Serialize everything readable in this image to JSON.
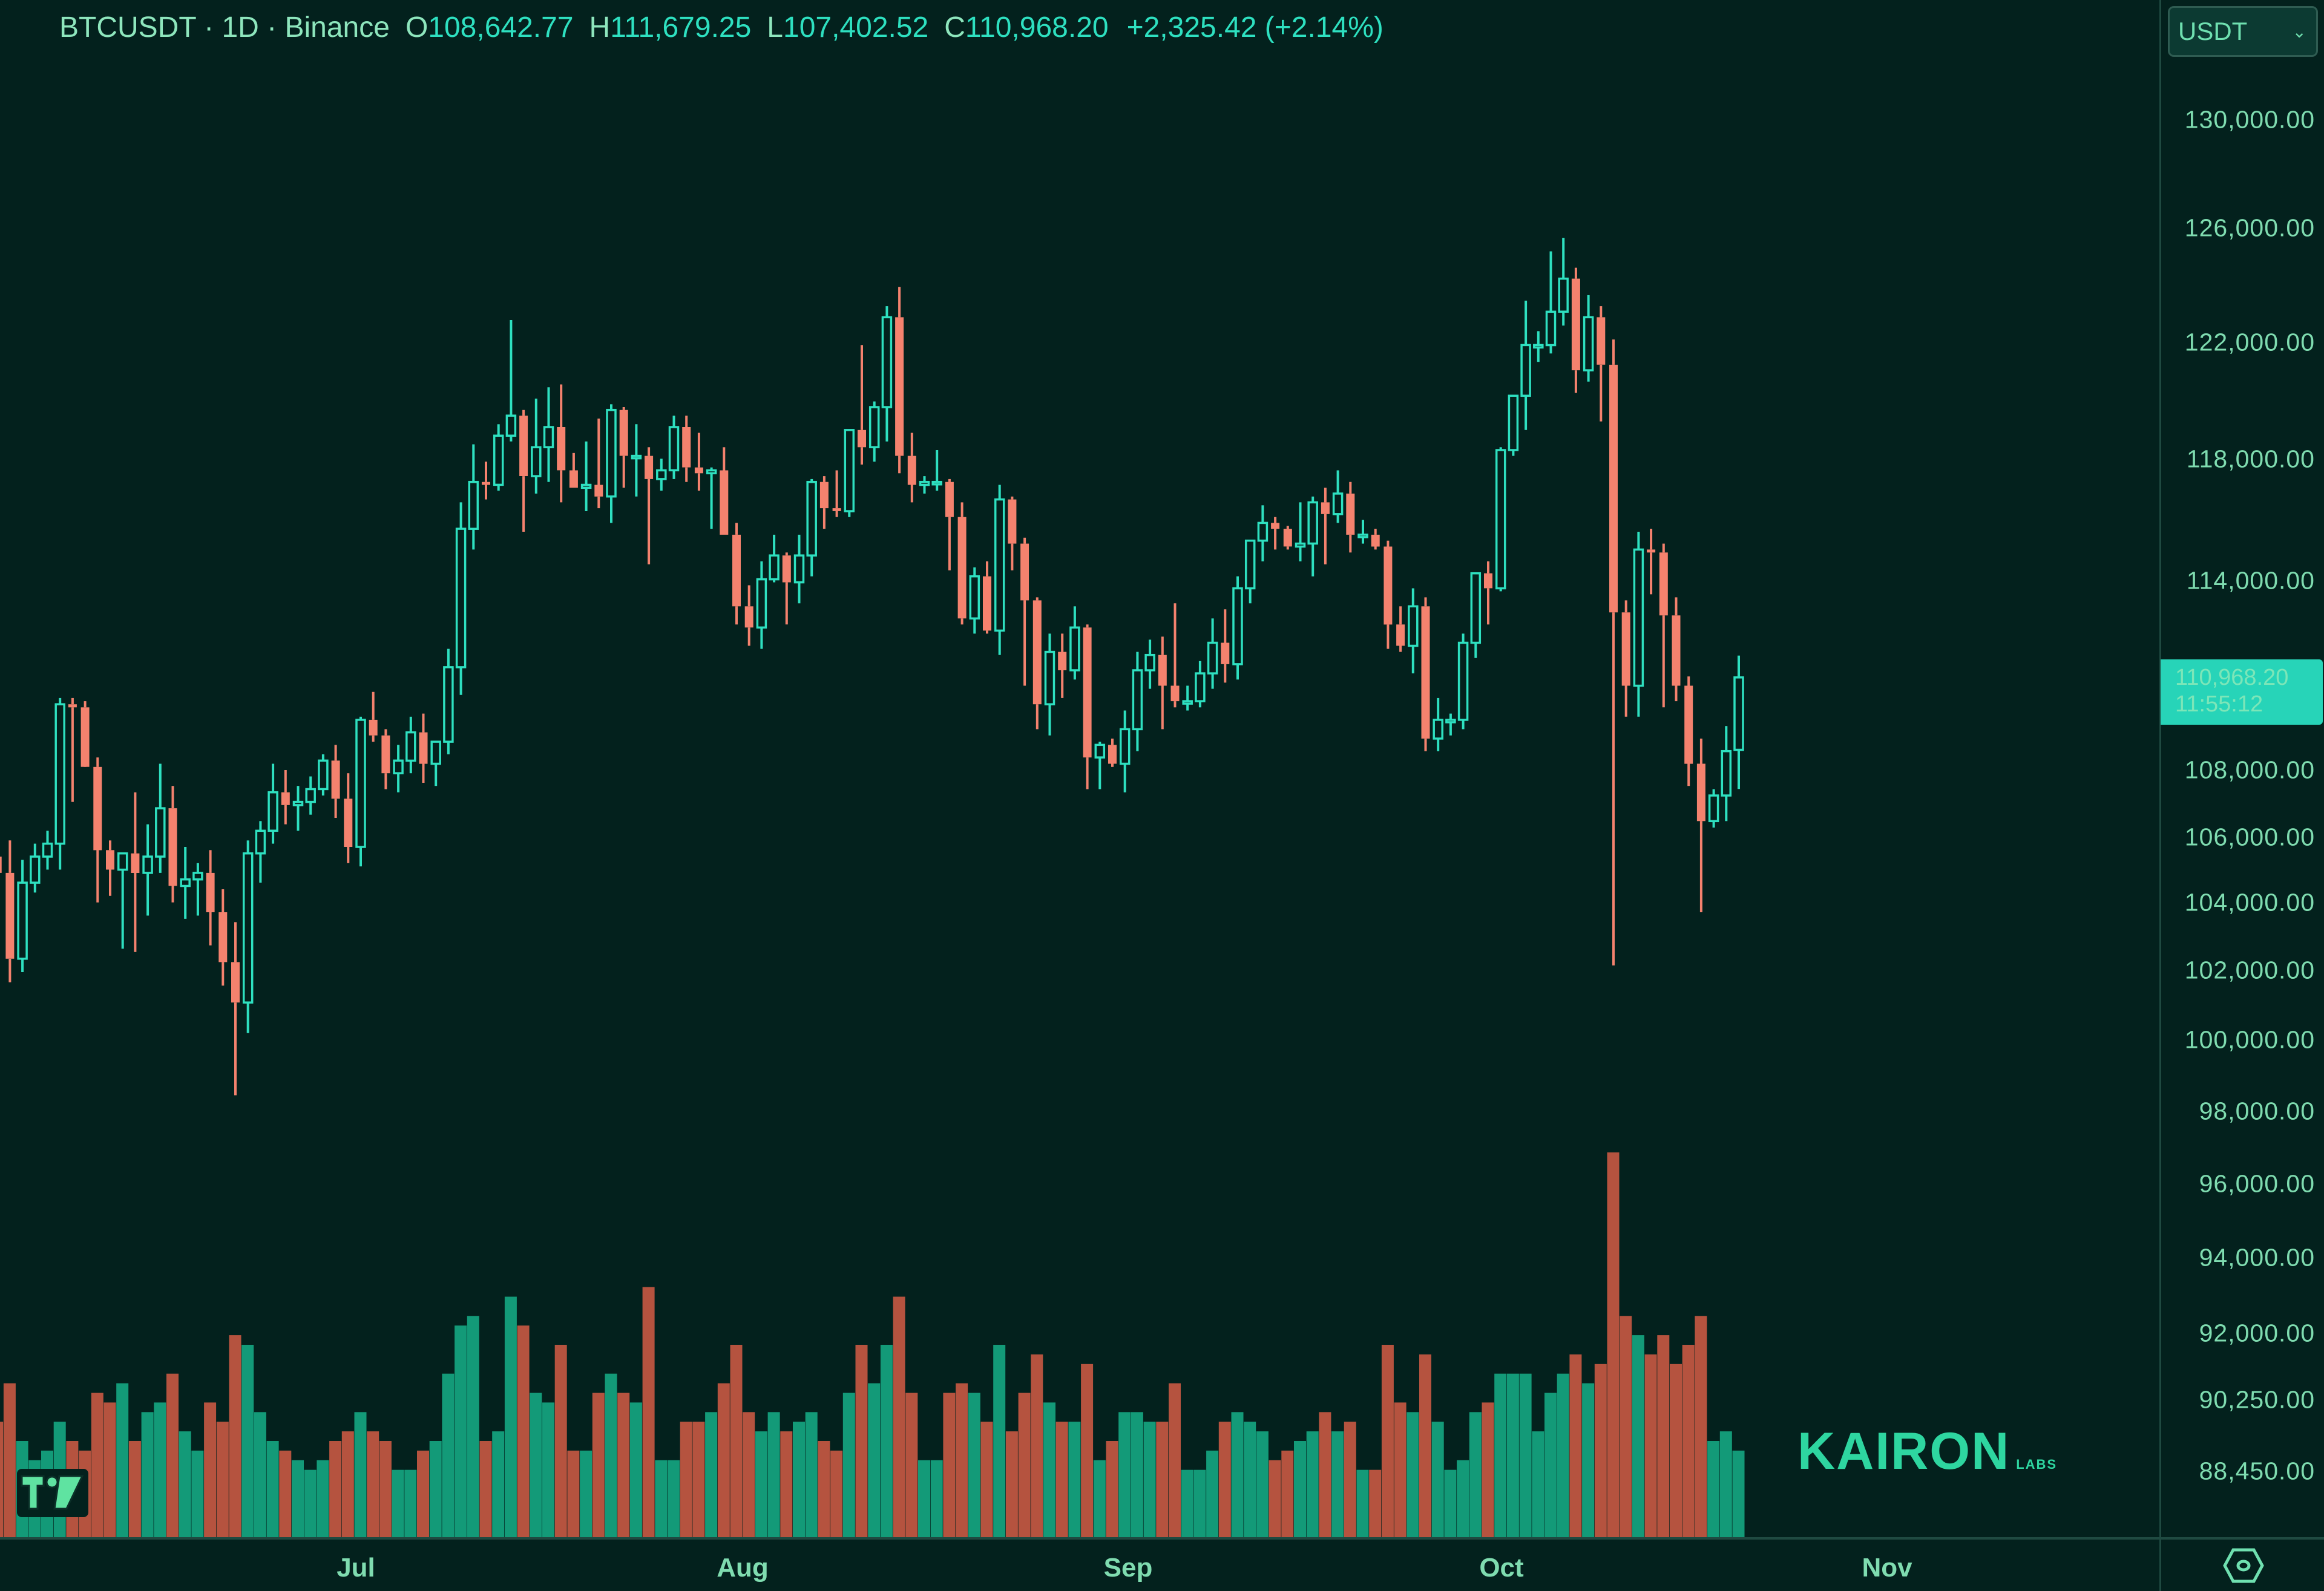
{
  "legend": {
    "symbol": "BTCUSDT · 1D · Binance",
    "open_key": "O",
    "open": "108,642.77",
    "high_key": "H",
    "high": "111,679.25",
    "low_key": "L",
    "low": "107,402.52",
    "close_key": "C",
    "close": "110,968.20",
    "change": "+2,325.42 (+2.14%)"
  },
  "currency_select": {
    "value": "USDT",
    "chevron": "⌄"
  },
  "price_tag": {
    "price": "110,968.20",
    "countdown": "11:55:12"
  },
  "price_axis": {
    "ticks": [
      {
        "label": "130,000.00",
        "y": 198
      },
      {
        "label": "126,000.00",
        "y": 377
      },
      {
        "label": "122,000.00",
        "y": 566
      },
      {
        "label": "118,000.00",
        "y": 759
      },
      {
        "label": "114,000.00",
        "y": 960
      },
      {
        "label": "108,000.00",
        "y": 1273
      },
      {
        "label": "106,000.00",
        "y": 1384
      },
      {
        "label": "104,000.00",
        "y": 1492
      },
      {
        "label": "102,000.00",
        "y": 1604
      },
      {
        "label": "100,000.00",
        "y": 1719
      },
      {
        "label": "98,000.00",
        "y": 1837
      },
      {
        "label": "96,000.00",
        "y": 1957
      },
      {
        "label": "94,000.00",
        "y": 2079
      },
      {
        "label": "92,000.00",
        "y": 2204
      },
      {
        "label": "90,250.00",
        "y": 2314
      },
      {
        "label": "88,450.00",
        "y": 2432
      }
    ]
  },
  "time_axis": {
    "labels": [
      {
        "label": "Jul",
        "x": 588
      },
      {
        "label": "Aug",
        "x": 1227
      },
      {
        "label": "Sep",
        "x": 1864
      },
      {
        "label": "Oct",
        "x": 2481
      },
      {
        "label": "Nov",
        "x": 3118
      }
    ]
  },
  "branding": {
    "watermark": "KAIRON",
    "watermark_sub": "LABS",
    "platform_logo": "tradingview-logo"
  },
  "colors": {
    "background": "#03211d",
    "up": "#2ee0c0",
    "down": "#f4826e",
    "volume_up": "#139a78",
    "volume_down": "#b5533f",
    "text": "#7fdcb0",
    "accent": "#27d4b8"
  },
  "chart_data": {
    "type": "candlestick",
    "title": "BTCUSDT · 1D · Binance",
    "xlabel": "",
    "ylabel": "USDT",
    "y_scale": "log",
    "ylim": [
      88450,
      130000
    ],
    "x_ticks": [
      "Jul",
      "Aug",
      "Sep",
      "Oct",
      "Nov"
    ],
    "fields": [
      "date",
      "open",
      "high",
      "low",
      "close",
      "volume"
    ],
    "last": {
      "open": 108642.77,
      "high": 111679.25,
      "low": 107402.52,
      "close": 110968.2,
      "change": 2325.42,
      "change_pct": 2.14
    },
    "candles": [
      [
        "06-02",
        105900,
        106400,
        104800,
        105300,
        11
      ],
      [
        "06-03",
        105300,
        105900,
        104100,
        104800,
        12
      ],
      [
        "06-04",
        104800,
        105800,
        101500,
        102200,
        16
      ],
      [
        "06-05",
        102200,
        105200,
        101800,
        104500,
        10
      ],
      [
        "06-06",
        104500,
        105700,
        104200,
        105300,
        8
      ],
      [
        "06-07",
        105300,
        106100,
        104900,
        105700,
        9
      ],
      [
        "06-08",
        105700,
        110300,
        104900,
        110100,
        12
      ],
      [
        "06-09",
        110100,
        110300,
        107000,
        110000,
        10
      ],
      [
        "06-10",
        110000,
        110200,
        108500,
        108100,
        9
      ],
      [
        "06-11",
        108100,
        108400,
        103900,
        105500,
        15
      ],
      [
        "06-12",
        105500,
        105800,
        104100,
        104900,
        14
      ],
      [
        "06-13",
        104900,
        105000,
        102500,
        105400,
        16
      ],
      [
        "06-14",
        105400,
        107300,
        102400,
        104800,
        10
      ],
      [
        "06-15",
        104800,
        106300,
        103500,
        105300,
        13
      ],
      [
        "06-16",
        105300,
        108200,
        104800,
        106800,
        14
      ],
      [
        "06-17",
        106800,
        107500,
        103900,
        104400,
        17
      ],
      [
        "06-18",
        104400,
        105600,
        103400,
        104600,
        11
      ],
      [
        "06-19",
        104600,
        105100,
        103500,
        104800,
        9
      ],
      [
        "06-20",
        104800,
        105500,
        102600,
        103600,
        14
      ],
      [
        "06-21",
        103600,
        104300,
        101400,
        102100,
        12
      ],
      [
        "06-22",
        102100,
        103300,
        98200,
        100900,
        21
      ],
      [
        "06-23",
        100900,
        105800,
        100000,
        105400,
        20
      ],
      [
        "06-24",
        105400,
        106400,
        104500,
        106100,
        13
      ],
      [
        "06-25",
        106100,
        108200,
        105700,
        107300,
        10
      ],
      [
        "06-26",
        107300,
        108000,
        106300,
        106900,
        9
      ],
      [
        "06-27",
        106900,
        107500,
        106100,
        107000,
        8
      ],
      [
        "06-28",
        107000,
        107800,
        106600,
        107400,
        7
      ],
      [
        "06-29",
        107400,
        108500,
        107200,
        108300,
        8
      ],
      [
        "06-30",
        108300,
        108800,
        106500,
        107100,
        10
      ],
      [
        "07-01",
        107100,
        107900,
        105100,
        105600,
        11
      ],
      [
        "07-02",
        105600,
        109700,
        105000,
        109600,
        13
      ],
      [
        "07-03",
        109600,
        110500,
        108900,
        109100,
        11
      ],
      [
        "07-04",
        109100,
        109300,
        107400,
        107900,
        10
      ],
      [
        "07-05",
        107900,
        108800,
        107300,
        108300,
        7
      ],
      [
        "07-06",
        108300,
        109700,
        107900,
        109200,
        7
      ],
      [
        "07-07",
        109200,
        109800,
        107600,
        108200,
        9
      ],
      [
        "07-08",
        108200,
        108900,
        107500,
        108900,
        10
      ],
      [
        "07-09",
        108900,
        111900,
        108500,
        111300,
        17
      ],
      [
        "07-10",
        111300,
        116800,
        110400,
        115900,
        22
      ],
      [
        "07-11",
        115900,
        118800,
        115200,
        117500,
        23
      ],
      [
        "07-12",
        117500,
        118200,
        116900,
        117400,
        10
      ],
      [
        "07-13",
        117400,
        119500,
        117200,
        119100,
        11
      ],
      [
        "07-14",
        119100,
        123200,
        118900,
        119800,
        25
      ],
      [
        "07-15",
        119800,
        120000,
        115800,
        117700,
        22
      ],
      [
        "07-16",
        117700,
        120400,
        117100,
        118700,
        15
      ],
      [
        "07-17",
        118700,
        120800,
        117500,
        119400,
        14
      ],
      [
        "07-18",
        119400,
        120900,
        116800,
        117900,
        20
      ],
      [
        "07-19",
        117900,
        118500,
        117300,
        117300,
        9
      ],
      [
        "07-20",
        117300,
        118900,
        116500,
        117400,
        9
      ],
      [
        "07-21",
        117400,
        119700,
        116600,
        117000,
        15
      ],
      [
        "07-22",
        117000,
        120200,
        116100,
        120000,
        17
      ],
      [
        "07-23",
        120000,
        120100,
        117300,
        118400,
        15
      ],
      [
        "07-24",
        118400,
        119500,
        117000,
        118400,
        14
      ],
      [
        "07-25",
        118400,
        118700,
        114700,
        117600,
        26
      ],
      [
        "07-26",
        117600,
        118300,
        117200,
        117900,
        8
      ],
      [
        "07-27",
        117900,
        119800,
        117600,
        119400,
        8
      ],
      [
        "07-28",
        119400,
        119800,
        117500,
        118000,
        12
      ],
      [
        "07-29",
        118000,
        119200,
        117200,
        117800,
        12
      ],
      [
        "07-30",
        117800,
        118000,
        115900,
        117900,
        13
      ],
      [
        "07-31",
        117900,
        118700,
        115700,
        115700,
        16
      ],
      [
        "08-01",
        115700,
        116100,
        112700,
        113300,
        20
      ],
      [
        "08-02",
        113300,
        114000,
        112000,
        112600,
        13
      ],
      [
        "08-03",
        112600,
        114800,
        111900,
        114200,
        11
      ],
      [
        "08-04",
        114200,
        115700,
        114100,
        115000,
        13
      ],
      [
        "08-05",
        115000,
        115100,
        112700,
        114100,
        11
      ],
      [
        "08-06",
        114100,
        115700,
        113400,
        115000,
        12
      ],
      [
        "08-07",
        115000,
        117600,
        114300,
        117500,
        13
      ],
      [
        "08-08",
        117500,
        117700,
        115900,
        116600,
        10
      ],
      [
        "08-09",
        116600,
        117900,
        116300,
        116500,
        9
      ],
      [
        "08-10",
        116500,
        119300,
        116300,
        119300,
        15
      ],
      [
        "08-11",
        119300,
        122300,
        118100,
        118700,
        20
      ],
      [
        "08-12",
        118700,
        120300,
        118200,
        120100,
        16
      ],
      [
        "08-13",
        120100,
        123700,
        118900,
        123300,
        20
      ],
      [
        "08-14",
        123300,
        124400,
        117800,
        118400,
        25
      ],
      [
        "08-15",
        118400,
        119200,
        116800,
        117400,
        15
      ],
      [
        "08-16",
        117400,
        117700,
        117100,
        117500,
        8
      ],
      [
        "08-17",
        117500,
        118600,
        117200,
        117500,
        8
      ],
      [
        "08-18",
        117500,
        117600,
        114500,
        116300,
        15
      ],
      [
        "08-19",
        116300,
        116800,
        112700,
        112900,
        16
      ],
      [
        "08-20",
        112900,
        114600,
        112400,
        114300,
        15
      ],
      [
        "08-21",
        114300,
        114800,
        112400,
        112500,
        12
      ],
      [
        "08-22",
        112500,
        117400,
        111700,
        116900,
        20
      ],
      [
        "08-23",
        116900,
        117000,
        114500,
        115400,
        11
      ],
      [
        "08-24",
        115400,
        115600,
        110700,
        113500,
        15
      ],
      [
        "08-25",
        113500,
        113600,
        109300,
        110100,
        19
      ],
      [
        "08-26",
        110100,
        112400,
        109100,
        111800,
        14
      ],
      [
        "08-27",
        111800,
        112400,
        110300,
        111200,
        12
      ],
      [
        "08-28",
        111200,
        113300,
        110900,
        112600,
        12
      ],
      [
        "08-29",
        112600,
        112700,
        107400,
        108400,
        18
      ],
      [
        "08-30",
        108400,
        108900,
        107400,
        108800,
        8
      ],
      [
        "08-31",
        108800,
        109000,
        108100,
        108200,
        10
      ],
      [
        "09-01",
        108200,
        109900,
        107300,
        109300,
        13
      ],
      [
        "09-02",
        109300,
        111800,
        108600,
        111200,
        13
      ],
      [
        "09-03",
        111200,
        112200,
        110600,
        111700,
        12
      ],
      [
        "09-04",
        111700,
        112300,
        109300,
        110700,
        12
      ],
      [
        "09-05",
        110700,
        113400,
        110000,
        110200,
        16
      ],
      [
        "09-06",
        110200,
        110700,
        109900,
        110200,
        7
      ],
      [
        "09-07",
        110200,
        111500,
        110000,
        111100,
        7
      ],
      [
        "09-08",
        111100,
        112900,
        110600,
        112100,
        9
      ],
      [
        "09-09",
        112100,
        113200,
        110800,
        111400,
        12
      ],
      [
        "09-10",
        111400,
        114300,
        110900,
        113900,
        13
      ],
      [
        "09-11",
        113900,
        115400,
        113400,
        115500,
        12
      ],
      [
        "09-12",
        115500,
        116700,
        114800,
        116100,
        11
      ],
      [
        "09-13",
        116100,
        116300,
        115200,
        115900,
        8
      ],
      [
        "09-14",
        115900,
        116000,
        115200,
        115300,
        9
      ],
      [
        "09-15",
        115300,
        116800,
        114800,
        115400,
        10
      ],
      [
        "09-16",
        115400,
        117000,
        114300,
        116800,
        11
      ],
      [
        "09-17",
        116800,
        117300,
        114700,
        116400,
        13
      ],
      [
        "09-18",
        116400,
        117900,
        116100,
        117100,
        11
      ],
      [
        "09-19",
        117100,
        117500,
        115100,
        115700,
        12
      ],
      [
        "09-20",
        115700,
        116200,
        115400,
        115700,
        7
      ],
      [
        "09-21",
        115700,
        115900,
        115200,
        115300,
        7
      ],
      [
        "09-22",
        115300,
        115500,
        111900,
        112700,
        20
      ],
      [
        "09-23",
        112700,
        113300,
        111800,
        112000,
        14
      ],
      [
        "09-24",
        112000,
        113900,
        111100,
        113300,
        13
      ],
      [
        "09-25",
        113300,
        113600,
        108600,
        109000,
        19
      ],
      [
        "09-26",
        109000,
        110300,
        108600,
        109600,
        12
      ],
      [
        "09-27",
        109600,
        109800,
        109100,
        109600,
        7
      ],
      [
        "09-28",
        109600,
        112400,
        109300,
        112100,
        8
      ],
      [
        "09-29",
        112100,
        114400,
        111600,
        114400,
        13
      ],
      [
        "09-30",
        114400,
        114800,
        112700,
        113900,
        14
      ],
      [
        "10-01",
        113900,
        118700,
        113800,
        118600,
        17
      ],
      [
        "10-02",
        118600,
        120500,
        118400,
        120500,
        17
      ],
      [
        "10-03",
        120500,
        123900,
        119300,
        122300,
        17
      ],
      [
        "10-04",
        122300,
        122800,
        121700,
        122300,
        11
      ],
      [
        "10-05",
        122300,
        125700,
        122000,
        123500,
        15
      ],
      [
        "10-06",
        123500,
        126200,
        123000,
        124700,
        17
      ],
      [
        "10-07",
        124700,
        125100,
        120600,
        121400,
        19
      ],
      [
        "10-08",
        121400,
        124100,
        121000,
        123300,
        16
      ],
      [
        "10-09",
        123300,
        123700,
        119600,
        121600,
        18
      ],
      [
        "10-10",
        121600,
        122500,
        102000,
        113100,
        40
      ],
      [
        "10-11",
        113100,
        113500,
        109700,
        110700,
        23
      ],
      [
        "10-12",
        110700,
        115800,
        109700,
        115200,
        21
      ],
      [
        "10-13",
        115200,
        115900,
        113700,
        115100,
        19
      ],
      [
        "10-14",
        115100,
        115400,
        110000,
        113000,
        21
      ],
      [
        "10-15",
        113000,
        113600,
        110200,
        110700,
        18
      ],
      [
        "10-16",
        110700,
        111000,
        107500,
        108200,
        20
      ],
      [
        "10-17",
        108200,
        109000,
        103600,
        106400,
        23
      ],
      [
        "10-18",
        106400,
        107400,
        106200,
        107200,
        10
      ],
      [
        "10-19",
        107200,
        109400,
        106400,
        108600,
        11
      ],
      [
        "10-20",
        108642.77,
        111679.25,
        107402.52,
        110968.2,
        9
      ]
    ]
  }
}
